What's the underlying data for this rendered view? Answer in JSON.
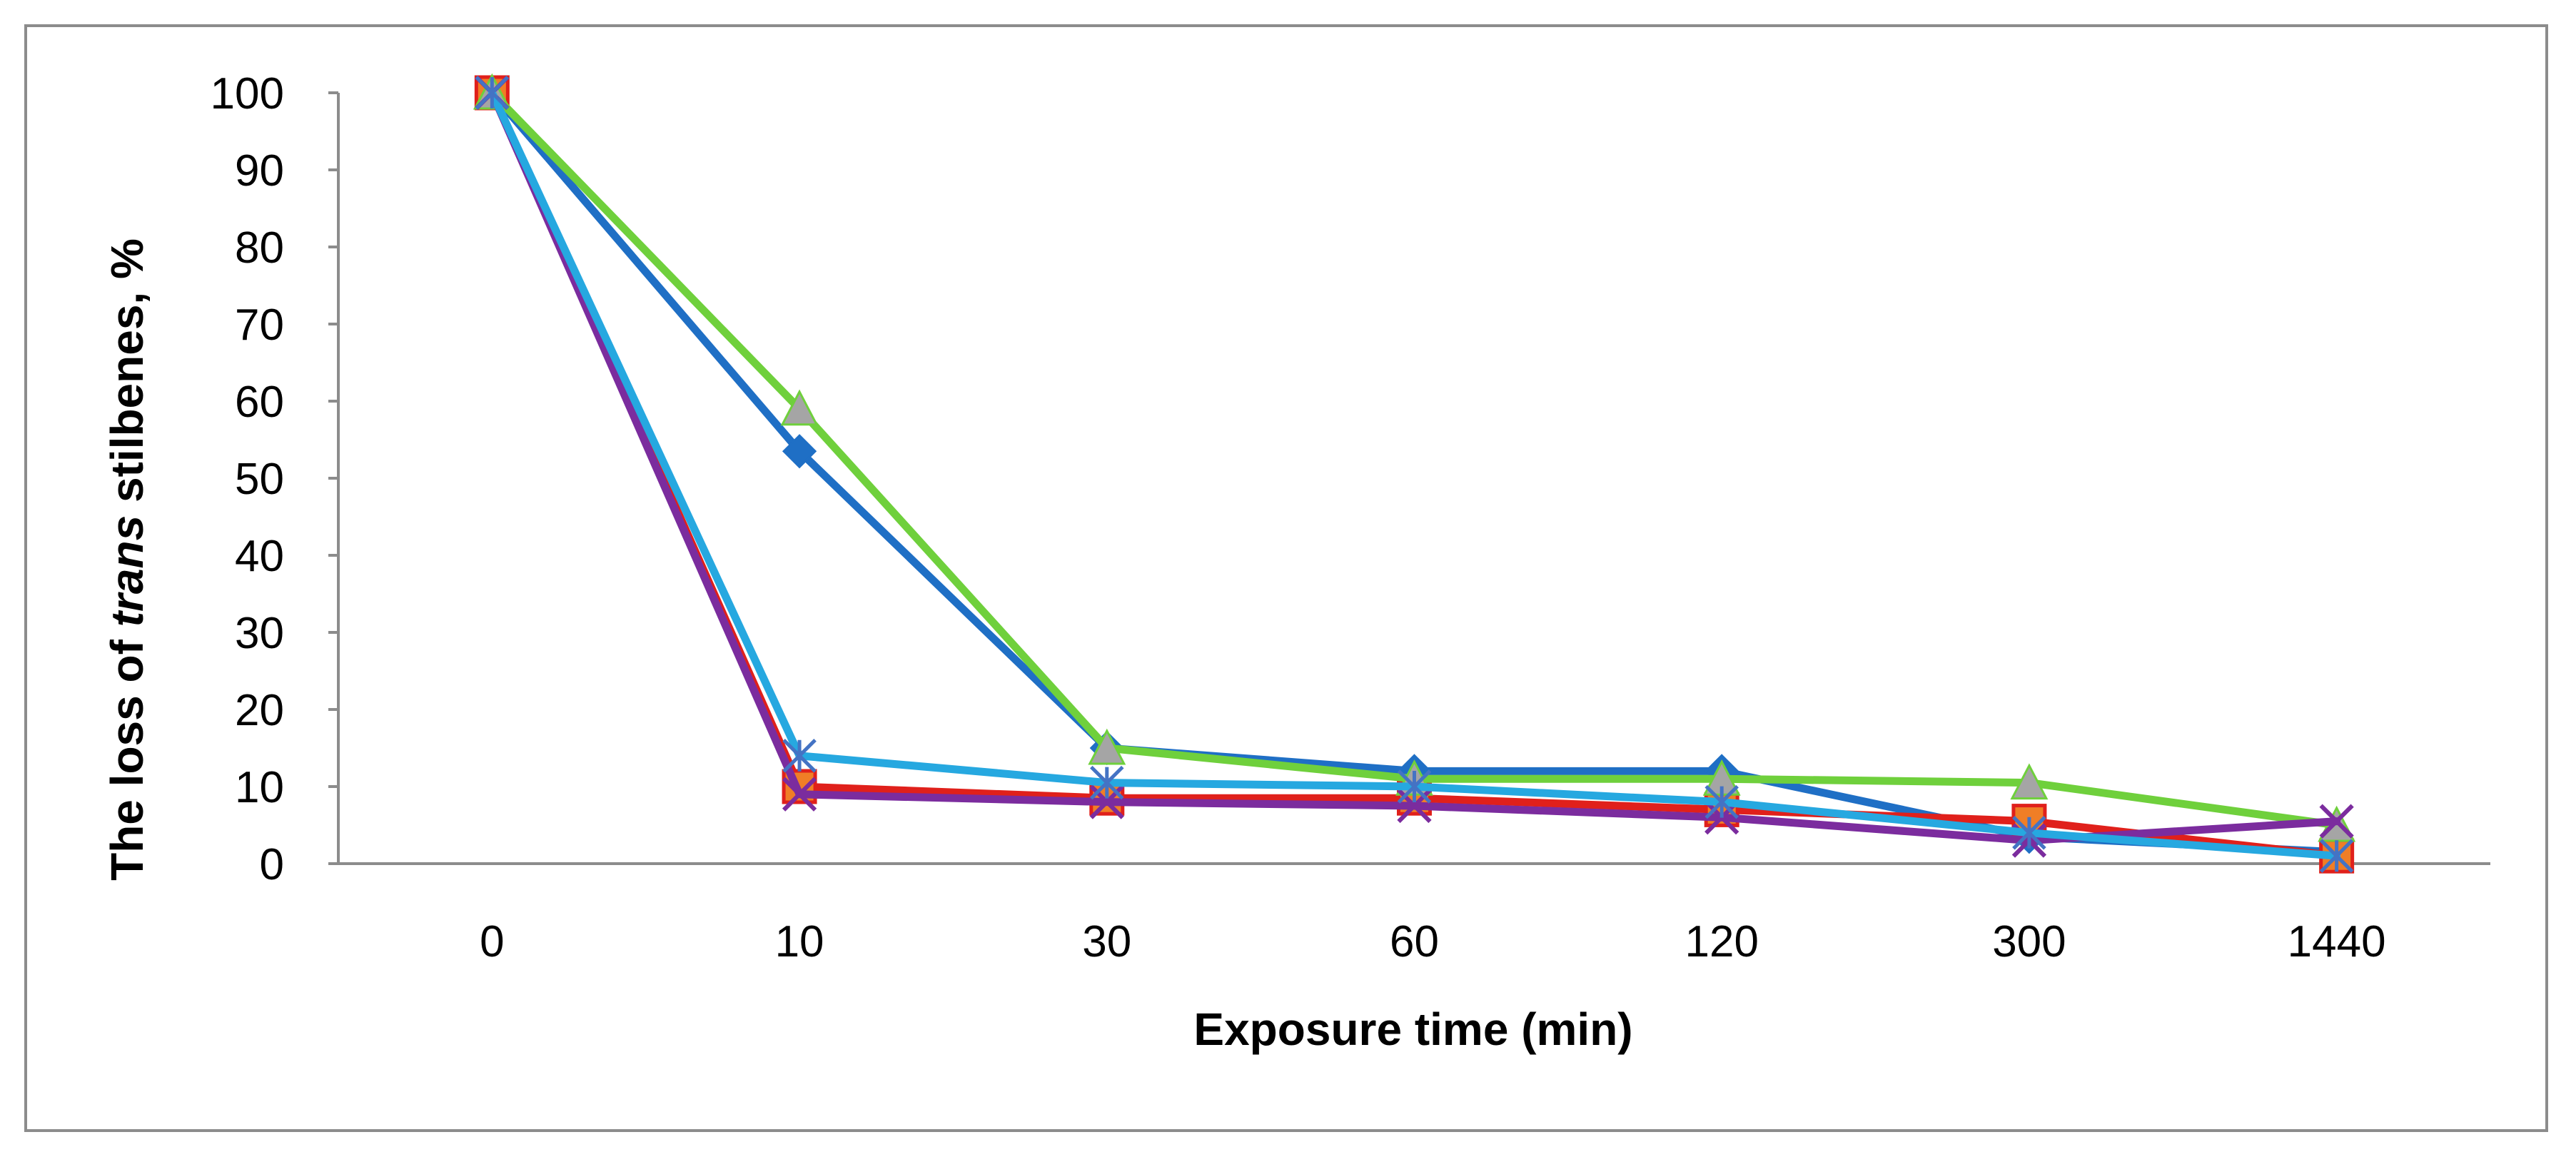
{
  "chart_data": {
    "type": "line",
    "title": "",
    "xlabel": "Exposure time (min)",
    "ylabel_parts": [
      "The loss of ",
      "trans",
      " stilbenes, %"
    ],
    "categories": [
      "0",
      "10",
      "30",
      "60",
      "120",
      "300",
      "1440"
    ],
    "ylim": [
      0,
      100
    ],
    "yticks": [
      0,
      10,
      20,
      30,
      40,
      50,
      60,
      70,
      80,
      90,
      100
    ],
    "grid": false,
    "legend": "none",
    "series": [
      {
        "name": "series-1",
        "color": "#1f6fc5",
        "marker": "diamond",
        "values": [
          100,
          53.5,
          15,
          12,
          12,
          3.5,
          1.5
        ]
      },
      {
        "name": "series-2",
        "color": "#e0201b",
        "marker": "square",
        "markerFill": "#f07e26",
        "values": [
          100,
          10,
          8.5,
          8.5,
          7,
          5.5,
          1
        ]
      },
      {
        "name": "series-3",
        "color": "#6fd03c",
        "marker": "triangle",
        "markerFill": "#a5a5a5",
        "values": [
          100,
          59,
          15,
          11,
          11,
          10.5,
          5
        ]
      },
      {
        "name": "series-4",
        "color": "#7b2c9e",
        "marker": "x",
        "values": [
          100,
          9,
          8,
          7.5,
          6,
          3,
          5.5
        ]
      },
      {
        "name": "series-5",
        "color": "#26a8e0",
        "marker": "star",
        "markerFill": "#4473c4",
        "values": [
          100,
          14,
          10.5,
          10,
          8,
          4,
          1
        ]
      }
    ]
  }
}
